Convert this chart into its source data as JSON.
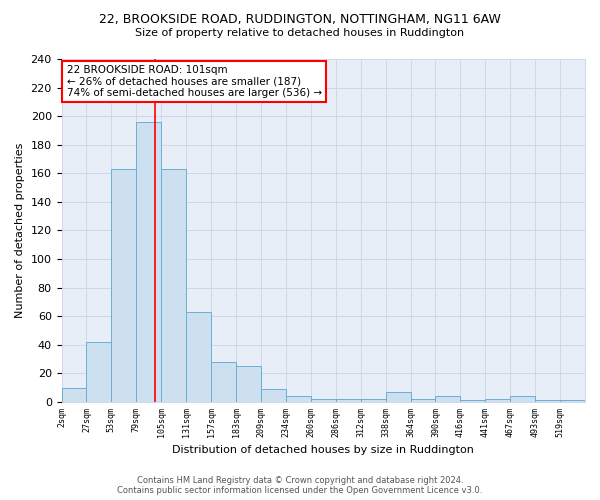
{
  "title1": "22, BROOKSIDE ROAD, RUDDINGTON, NOTTINGHAM, NG11 6AW",
  "title2": "Size of property relative to detached houses in Ruddington",
  "xlabel": "Distribution of detached houses by size in Ruddington",
  "ylabel": "Number of detached properties",
  "bin_labels": [
    "2sqm",
    "27sqm",
    "53sqm",
    "79sqm",
    "105sqm",
    "131sqm",
    "157sqm",
    "183sqm",
    "209sqm",
    "234sqm",
    "260sqm",
    "286sqm",
    "312sqm",
    "338sqm",
    "364sqm",
    "390sqm",
    "416sqm",
    "441sqm",
    "467sqm",
    "493sqm",
    "519sqm"
  ],
  "bar_heights": [
    10,
    42,
    163,
    196,
    163,
    63,
    28,
    25,
    9,
    4,
    2,
    2,
    2,
    7,
    2,
    4,
    1,
    2,
    4,
    1,
    1
  ],
  "bar_color": "#cce0f0",
  "bar_edge_color": "#6baed6",
  "property_line_x": 3.75,
  "annotation_title": "22 BROOKSIDE ROAD: 101sqm",
  "annotation_line1": "← 26% of detached houses are smaller (187)",
  "annotation_line2": "74% of semi-detached houses are larger (536) →",
  "ylim": [
    0,
    240
  ],
  "yticks": [
    0,
    20,
    40,
    60,
    80,
    100,
    120,
    140,
    160,
    180,
    200,
    220,
    240
  ],
  "footer1": "Contains HM Land Registry data © Crown copyright and database right 2024.",
  "footer2": "Contains public sector information licensed under the Open Government Licence v3.0.",
  "grid_color": "#d0d8e8",
  "bg_color": "#e8eef8"
}
